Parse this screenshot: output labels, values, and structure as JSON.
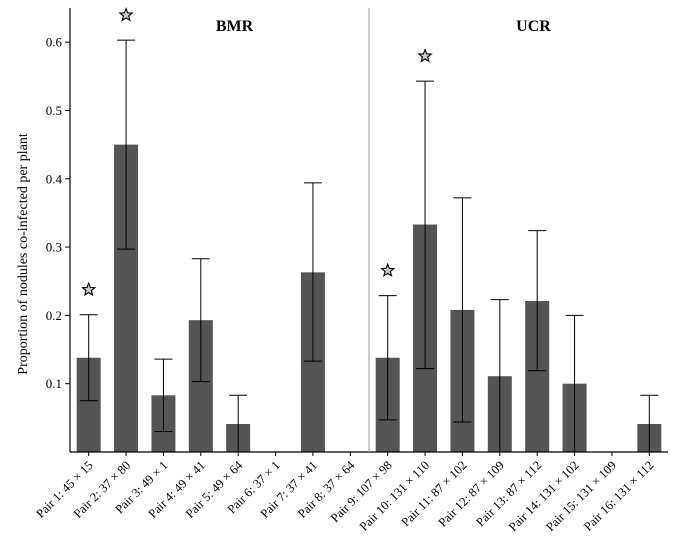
{
  "chart_data": {
    "type": "bar",
    "ylabel": "Proportion of nodules co-infected per plant",
    "ylim": [
      0,
      0.65
    ],
    "yticks": [
      "0.1",
      "0.2",
      "0.3",
      "0.4",
      "0.5",
      "0.6"
    ],
    "groups": [
      {
        "label": "BMR",
        "first_index": 0,
        "last_index": 7
      },
      {
        "label": "UCR",
        "first_index": 8,
        "last_index": 15
      }
    ],
    "categories": [
      "Pair 1: 45 × 15",
      "Pair 2: 37 × 80",
      "Pair 3: 49 × 1",
      "Pair 4: 49 × 41",
      "Pair 5: 49 × 64",
      "Pair 6: 37 × 1",
      "Pair 7: 37 × 41",
      "Pair 8: 37 × 64",
      "Pair 9: 107 × 98",
      "Pair 10: 131 × 110",
      "Pair 11: 87 × 102",
      "Pair 12: 87 × 109",
      "Pair 13: 87 × 112",
      "Pair 14: 131 × 102",
      "Pair 15: 131 × 109",
      "Pair 16: 131 × 112"
    ],
    "values": [
      0.138,
      0.45,
      0.083,
      0.193,
      0.041,
      0,
      0.263,
      0,
      0.138,
      0.333,
      0.208,
      0.111,
      0.221,
      0.1,
      0,
      0.041
    ],
    "error_upper": [
      0.201,
      0.603,
      0.136,
      0.283,
      0.083,
      null,
      0.394,
      null,
      0.229,
      0.543,
      0.372,
      0.223,
      0.324,
      0.2,
      null,
      0.083
    ],
    "error_lower": [
      0.075,
      0.297,
      0.03,
      0.103,
      0,
      null,
      0.133,
      null,
      0.047,
      0.122,
      0.044,
      0,
      0.119,
      0,
      null,
      0
    ],
    "significant": [
      true,
      true,
      false,
      false,
      false,
      false,
      false,
      false,
      true,
      true,
      false,
      false,
      false,
      false,
      false,
      false
    ],
    "bar_color": "#555555",
    "star_color": "#c9c9c9",
    "grid": false,
    "legend": "none"
  }
}
